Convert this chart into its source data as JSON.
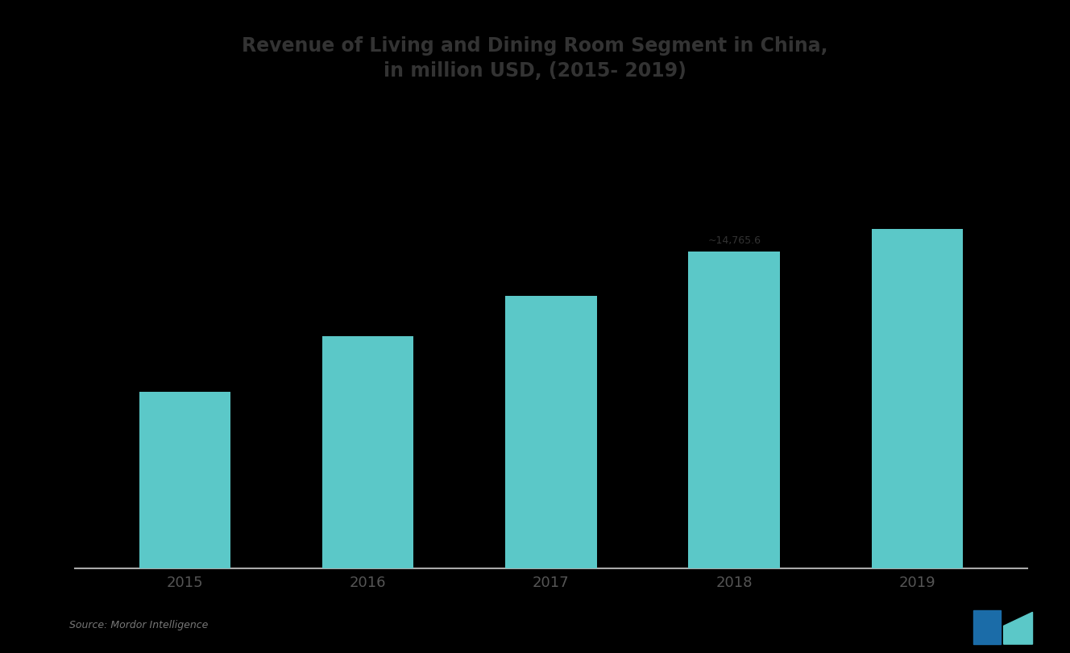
{
  "title_line1": "Revenue of Living and Dining Room Segment in China,",
  "title_line2": "in million USD, (2015- 2019)",
  "categories": [
    "2015",
    "2016",
    "2017",
    "2018",
    "2019"
  ],
  "values": [
    8200,
    10800,
    12700,
    14766,
    15800
  ],
  "bar_color": "#5BC8C8",
  "annotation_bar_index": 3,
  "annotation_text": "~14,765.6",
  "annotation_fontsize": 9,
  "background_color": "#000000",
  "title_color": "#333333",
  "tick_label_color": "#555555",
  "title_fontsize": 17,
  "axis_line_color": "#aaaaaa",
  "source_text": "Source: Mordor Intelligence",
  "ylim": [
    0,
    21000
  ],
  "bar_width": 0.5
}
